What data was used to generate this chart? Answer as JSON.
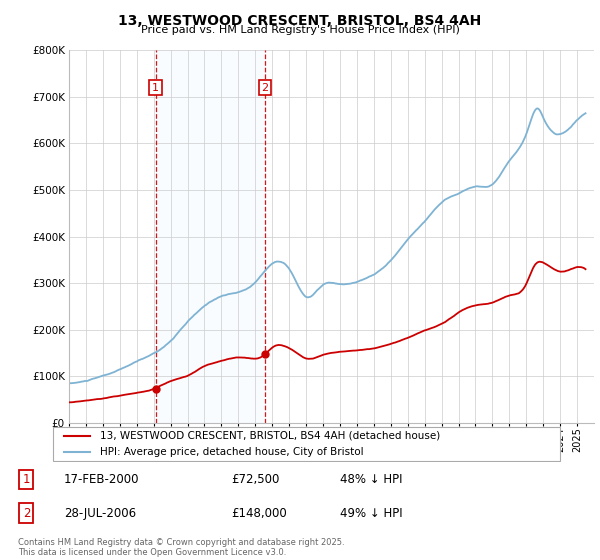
{
  "title": "13, WESTWOOD CRESCENT, BRISTOL, BS4 4AH",
  "subtitle": "Price paid vs. HM Land Registry's House Price Index (HPI)",
  "legend_entry1": "13, WESTWOOD CRESCENT, BRISTOL, BS4 4AH (detached house)",
  "legend_entry2": "HPI: Average price, detached house, City of Bristol",
  "annotation1_label": "1",
  "annotation1_date": "17-FEB-2000",
  "annotation1_price": "£72,500",
  "annotation1_hpi": "48% ↓ HPI",
  "annotation2_label": "2",
  "annotation2_date": "28-JUL-2006",
  "annotation2_price": "£148,000",
  "annotation2_hpi": "49% ↓ HPI",
  "footer": "Contains HM Land Registry data © Crown copyright and database right 2025.\nThis data is licensed under the Open Government Licence v3.0.",
  "hpi_color": "#7fb3d3",
  "price_color": "#cc0000",
  "vline_color": "#cc0000",
  "shade_color": "#ddeeff",
  "ylim": [
    0,
    800000
  ],
  "yticks": [
    0,
    100000,
    200000,
    300000,
    400000,
    500000,
    600000,
    700000,
    800000
  ],
  "sale1_x": 2000.12,
  "sale1_y": 72500,
  "sale2_x": 2006.57,
  "sale2_y": 148000,
  "xmin": 1995,
  "xmax": 2026
}
